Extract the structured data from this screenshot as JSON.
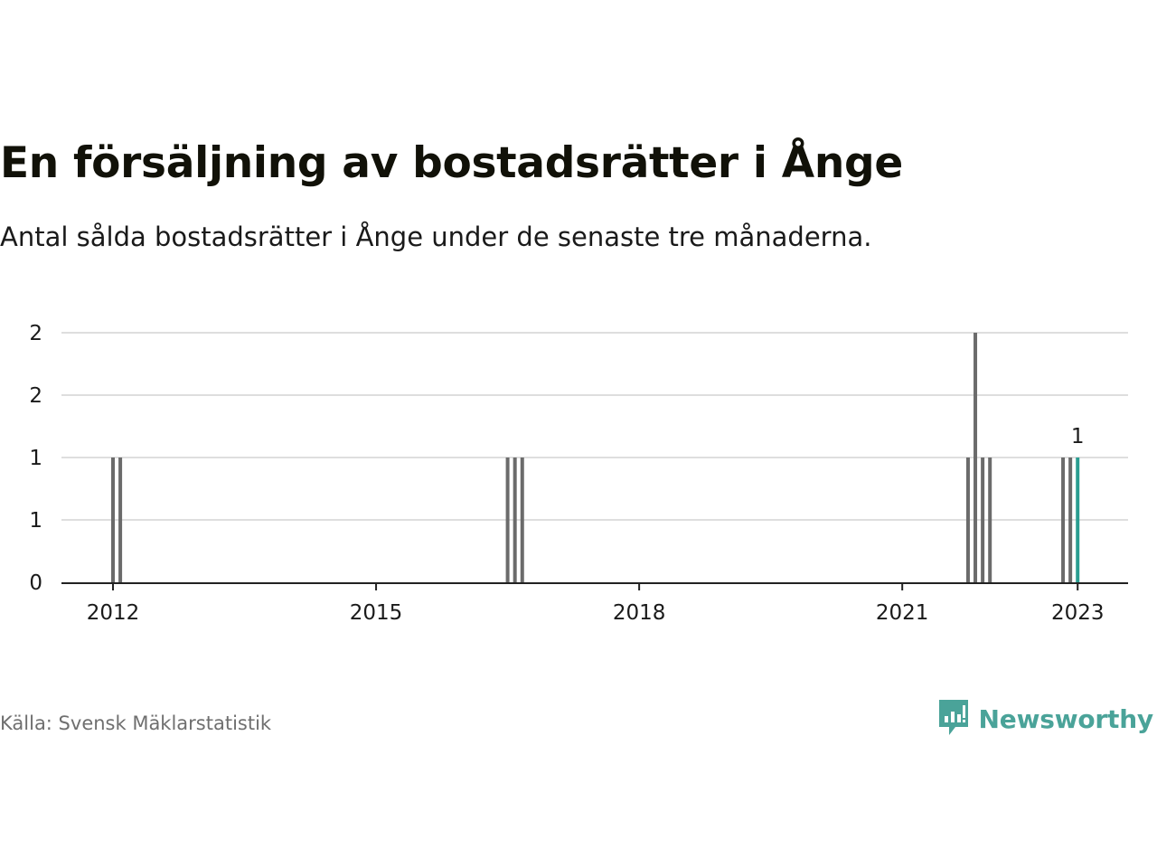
{
  "title": "En försäljning av bostadsrätter i Ånge",
  "subtitle": "Antal sålda bostadsrätter i Ånge under de senaste tre månaderna.",
  "source": "Källa: Svensk Mäklarstatistik",
  "brand": {
    "name": "Newsworthy"
  },
  "colors": {
    "bar": "#6b6b6b",
    "highlight": "#2a9d91",
    "grid": "#dedede",
    "axis": "#222222",
    "tick_text": "#1a1a1a",
    "brand": "#4aa399"
  },
  "chart_data": {
    "type": "bar",
    "title": "En försäljning av bostadsrätter i Ånge",
    "subtitle": "Antal sålda bostadsrätter i Ånge under de senaste tre månaderna.",
    "xlabel": "",
    "ylabel": "",
    "xlim": [
      "2011-09",
      "2023-07"
    ],
    "ylim": [
      0,
      2
    ],
    "y_ticks": [
      0,
      0.5,
      1,
      1.5,
      2
    ],
    "y_tick_labels": [
      "0",
      "1",
      "1",
      "2",
      "2"
    ],
    "x_ticks": [
      "2012-01",
      "2015-01",
      "2018-01",
      "2021-01",
      "2023-01"
    ],
    "x_tick_labels": [
      "2012",
      "2015",
      "2018",
      "2021",
      "2023"
    ],
    "grid": true,
    "legend": "none",
    "series": [
      {
        "points": [
          {
            "x": "2012-01",
            "y": 1
          },
          {
            "x": "2012-02",
            "y": 1
          },
          {
            "x": "2016-07",
            "y": 1
          },
          {
            "x": "2016-08",
            "y": 1
          },
          {
            "x": "2016-09",
            "y": 1
          },
          {
            "x": "2021-10",
            "y": 1
          },
          {
            "x": "2021-11",
            "y": 2
          },
          {
            "x": "2021-12",
            "y": 1
          },
          {
            "x": "2022-01",
            "y": 1
          },
          {
            "x": "2022-11",
            "y": 1
          },
          {
            "x": "2022-12",
            "y": 1
          },
          {
            "x": "2023-01",
            "y": 1,
            "highlight": true,
            "label": "1"
          }
        ]
      }
    ]
  }
}
